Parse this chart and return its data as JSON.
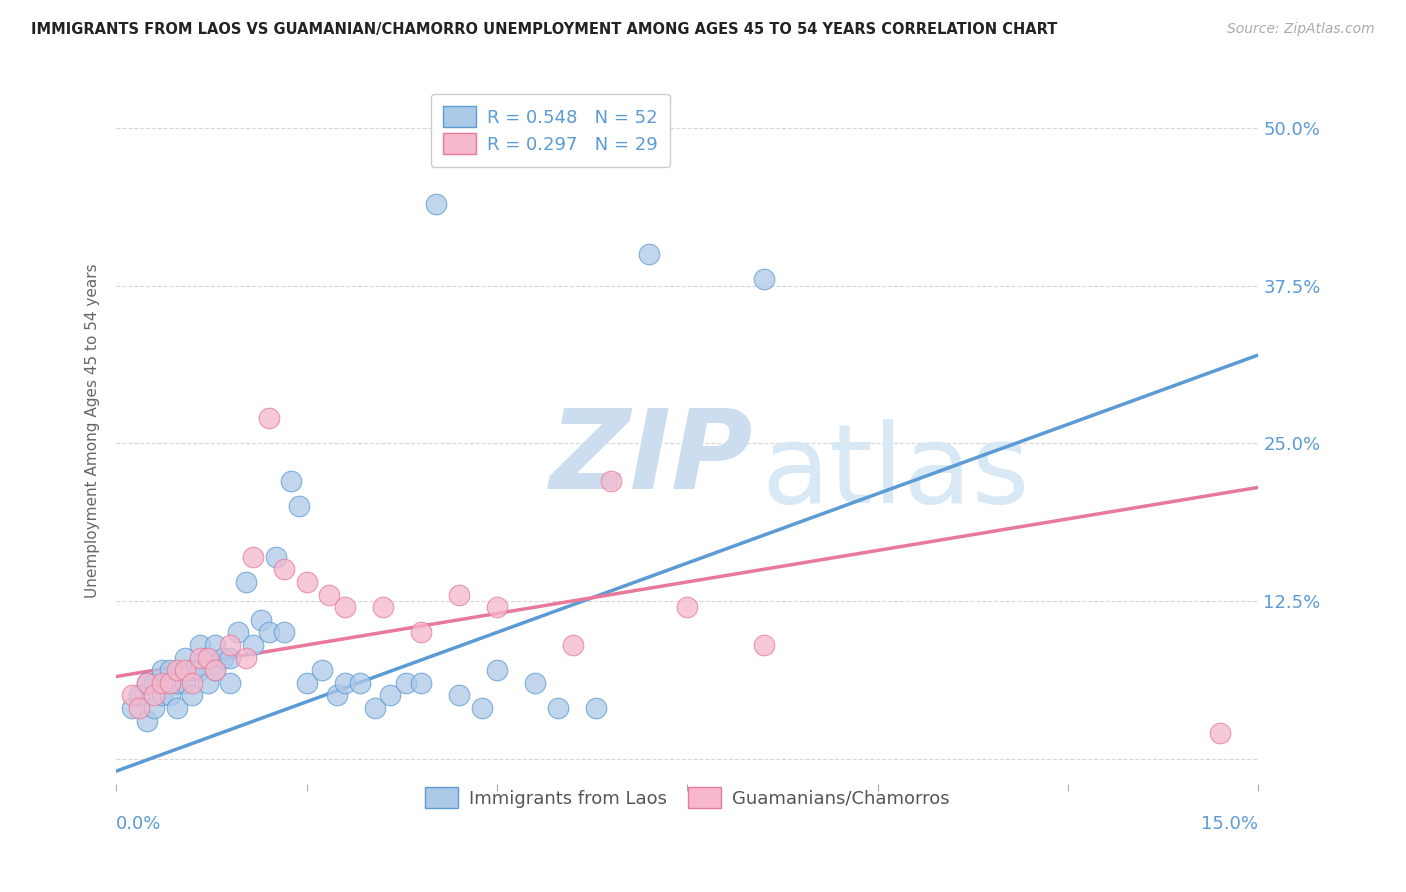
{
  "title": "IMMIGRANTS FROM LAOS VS GUAMANIAN/CHAMORRO UNEMPLOYMENT AMONG AGES 45 TO 54 YEARS CORRELATION CHART",
  "source": "Source: ZipAtlas.com",
  "ylabel": "Unemployment Among Ages 45 to 54 years",
  "ytick_labels": [
    "",
    "12.5%",
    "25.0%",
    "37.5%",
    "50.0%"
  ],
  "ytick_values": [
    0.0,
    0.125,
    0.25,
    0.375,
    0.5
  ],
  "xlim": [
    0.0,
    0.15
  ],
  "ylim": [
    -0.02,
    0.54
  ],
  "legend1_label": "R = 0.548   N = 52",
  "legend2_label": "R = 0.297   N = 29",
  "series1_color": "#adc9e8",
  "series2_color": "#f5b8cc",
  "line1_color": "#5b9bd5",
  "line2_color": "#e8799a",
  "watermark_zip": "ZIP",
  "watermark_atlas": "atlas",
  "background_color": "#ffffff",
  "grid_color": "#cccccc",
  "blue_scatter_x": [
    0.002,
    0.003,
    0.004,
    0.004,
    0.005,
    0.005,
    0.006,
    0.006,
    0.007,
    0.007,
    0.008,
    0.008,
    0.009,
    0.009,
    0.01,
    0.01,
    0.011,
    0.011,
    0.012,
    0.012,
    0.013,
    0.013,
    0.014,
    0.015,
    0.015,
    0.016,
    0.017,
    0.018,
    0.019,
    0.02,
    0.021,
    0.022,
    0.023,
    0.024,
    0.025,
    0.027,
    0.029,
    0.03,
    0.032,
    0.034,
    0.036,
    0.038,
    0.04,
    0.042,
    0.045,
    0.048,
    0.05,
    0.055,
    0.058,
    0.063,
    0.07,
    0.085
  ],
  "blue_scatter_y": [
    0.04,
    0.05,
    0.03,
    0.06,
    0.04,
    0.06,
    0.05,
    0.07,
    0.05,
    0.07,
    0.04,
    0.06,
    0.06,
    0.08,
    0.05,
    0.07,
    0.07,
    0.09,
    0.06,
    0.08,
    0.07,
    0.09,
    0.08,
    0.06,
    0.08,
    0.1,
    0.14,
    0.09,
    0.11,
    0.1,
    0.16,
    0.1,
    0.22,
    0.2,
    0.06,
    0.07,
    0.05,
    0.06,
    0.06,
    0.04,
    0.05,
    0.06,
    0.06,
    0.44,
    0.05,
    0.04,
    0.07,
    0.06,
    0.04,
    0.04,
    0.4,
    0.38
  ],
  "pink_scatter_x": [
    0.002,
    0.003,
    0.004,
    0.005,
    0.006,
    0.007,
    0.008,
    0.009,
    0.01,
    0.011,
    0.012,
    0.013,
    0.015,
    0.017,
    0.018,
    0.02,
    0.022,
    0.025,
    0.028,
    0.03,
    0.035,
    0.04,
    0.045,
    0.05,
    0.06,
    0.065,
    0.075,
    0.085,
    0.145
  ],
  "pink_scatter_y": [
    0.05,
    0.04,
    0.06,
    0.05,
    0.06,
    0.06,
    0.07,
    0.07,
    0.06,
    0.08,
    0.08,
    0.07,
    0.09,
    0.08,
    0.16,
    0.27,
    0.15,
    0.14,
    0.13,
    0.12,
    0.12,
    0.1,
    0.13,
    0.12,
    0.09,
    0.22,
    0.12,
    0.09,
    0.02
  ],
  "line1_x0": 0.0,
  "line1_y0": -0.01,
  "line1_x1": 0.15,
  "line1_y1": 0.32,
  "line2_x0": 0.0,
  "line2_y0": 0.065,
  "line2_x1": 0.15,
  "line2_y1": 0.215
}
